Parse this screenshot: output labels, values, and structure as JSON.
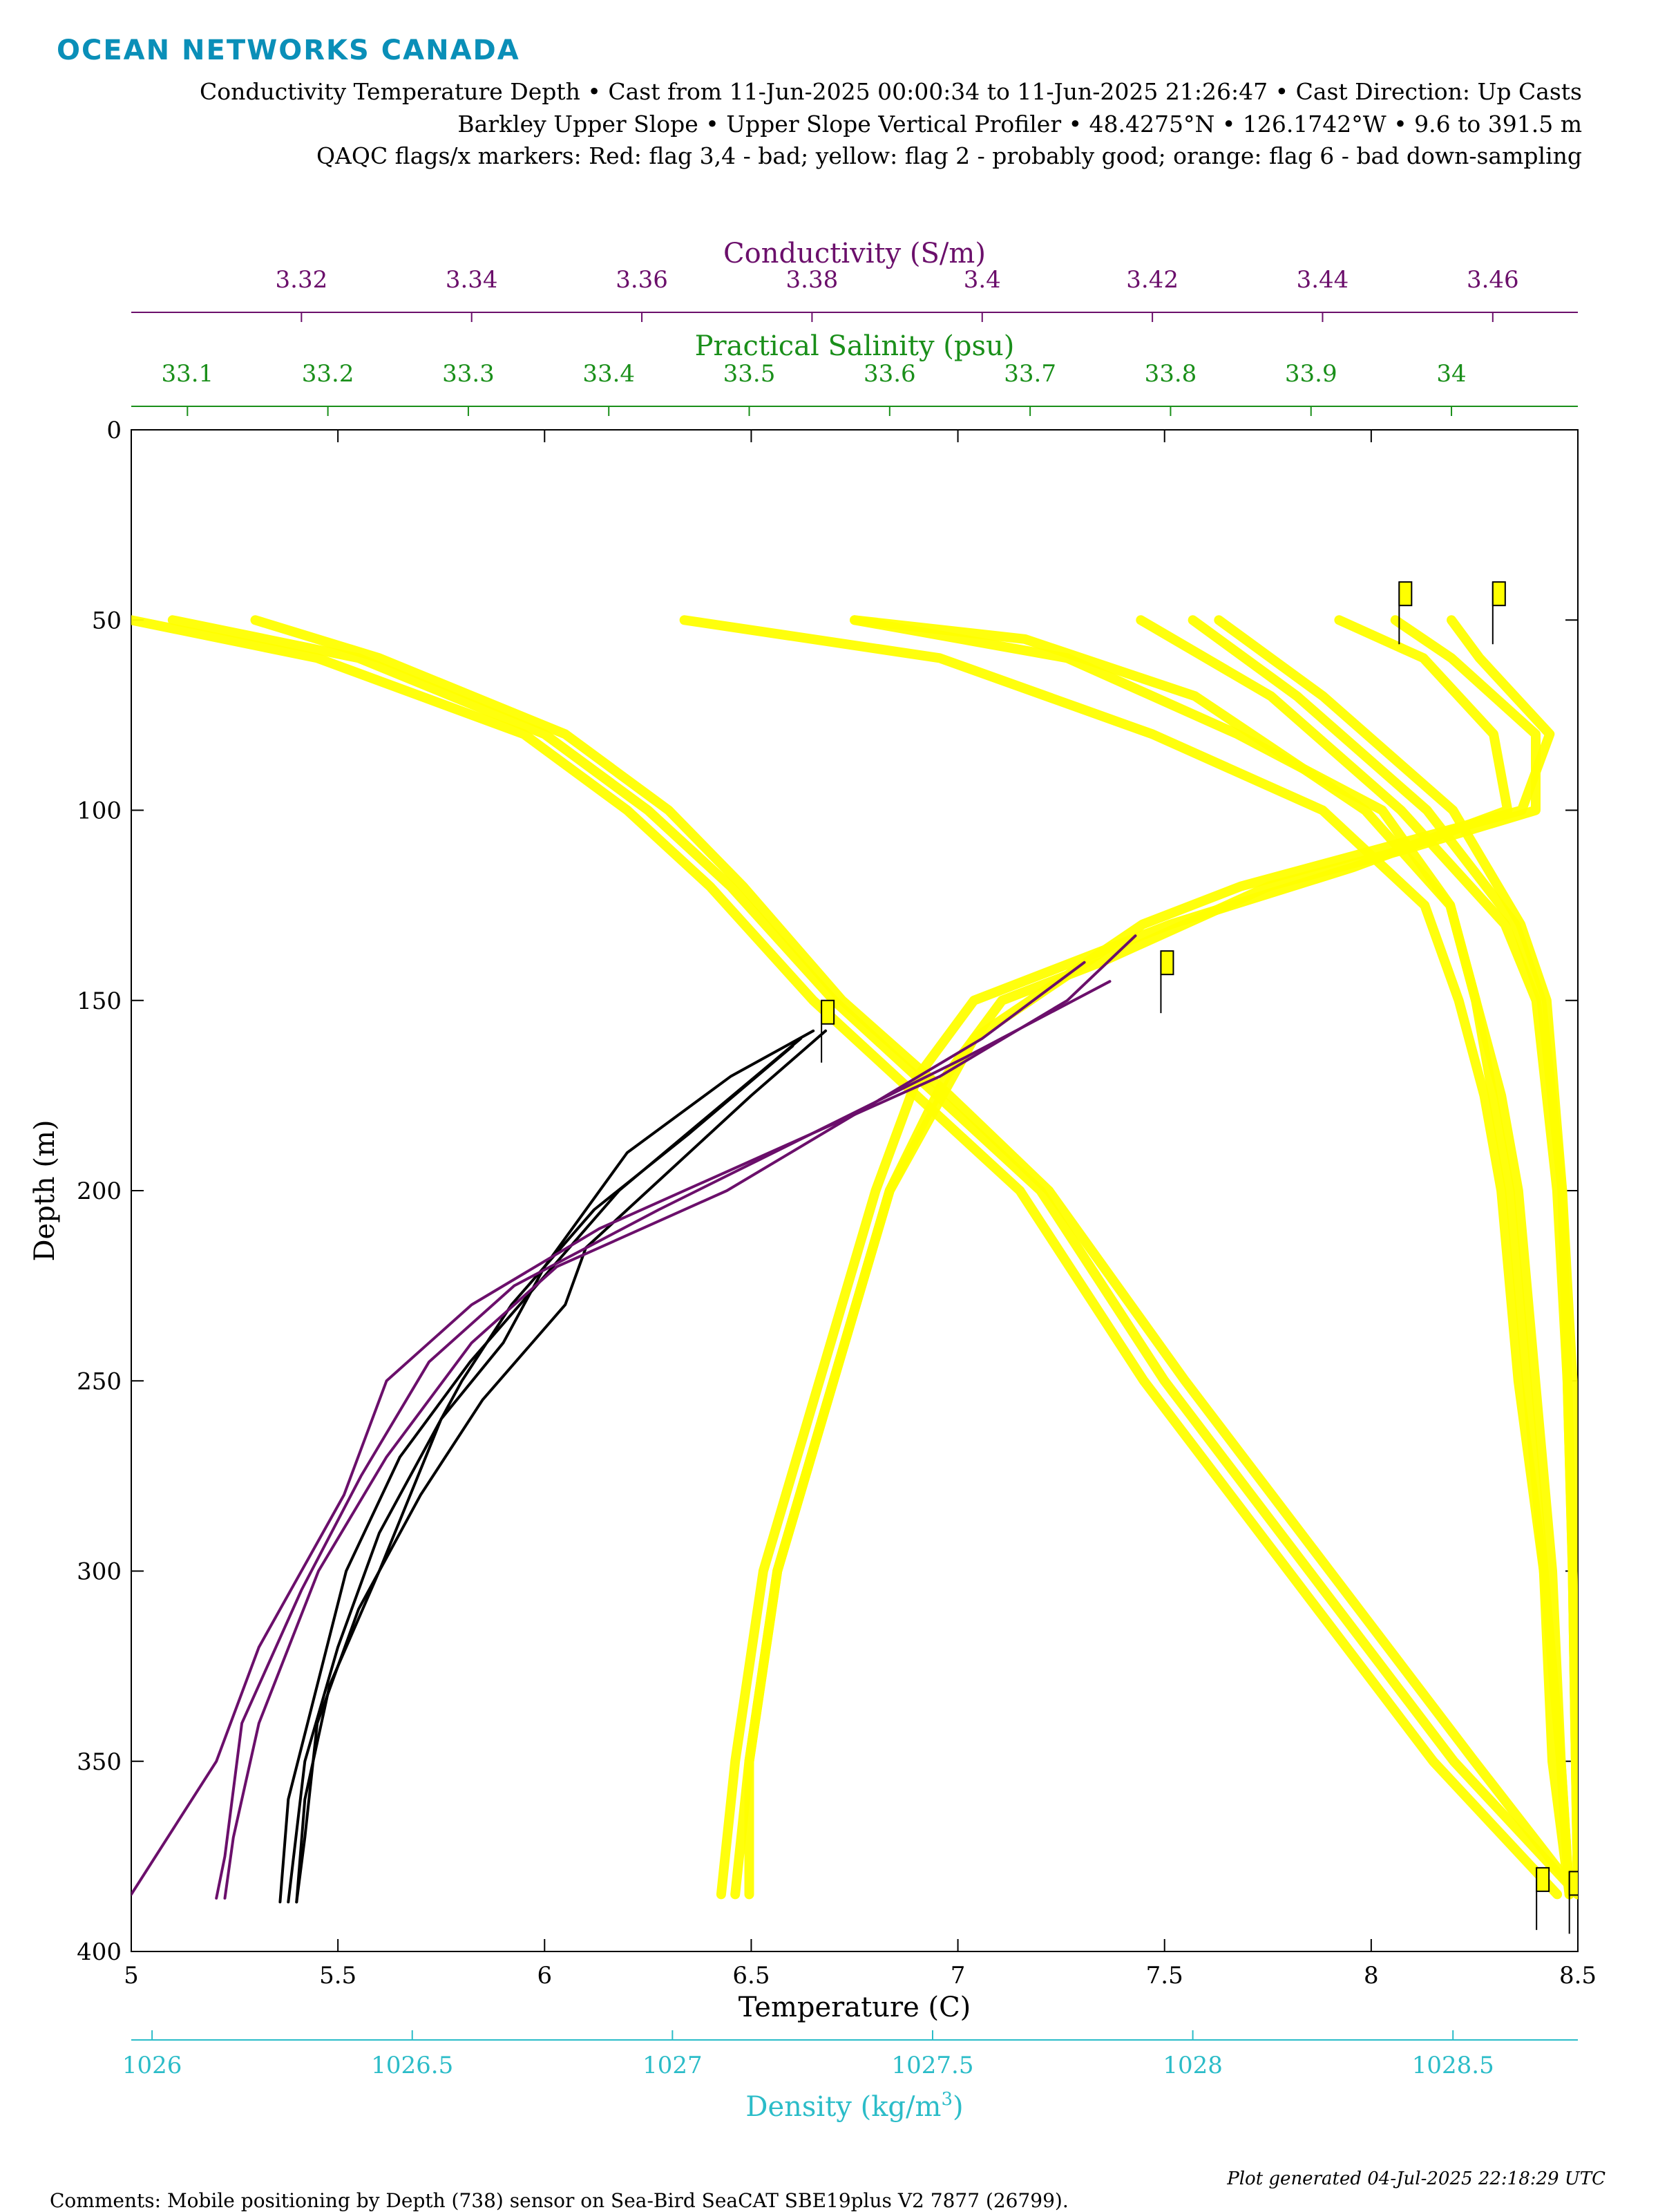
{
  "logo_text": "OCEAN NETWORKS CANADA",
  "header": {
    "line1": "Conductivity Temperature Depth • Cast from 11-Jun-2025 00:00:34 to 11-Jun-2025 21:26:47 • Cast Direction: Up Casts",
    "line2": "Barkley Upper Slope • Upper Slope Vertical Profiler • 48.4275°N • 126.1742°W • 9.6 to 391.5 m",
    "line3": "QAQC flags/x markers: Red: flag 3,4 - bad; yellow: flag 2 - probably good; orange: flag 6 - bad down-sampling"
  },
  "footer": {
    "comments": "Comments: Mobile positioning by Depth (738) sensor on Sea-Bird SeaCAT SBE19plus V2 7877 (26799).",
    "generated": "Plot generated 04-Jul-2025 22:18:29 UTC"
  },
  "colors": {
    "temperature": "#000000",
    "conductivity": "#6b0f6b",
    "salinity": "#1a8f1a",
    "density": "#2bbcc8",
    "flag_probably_good": "#ffff00"
  },
  "chart_data": {
    "type": "line",
    "y_axis": {
      "label": "Depth (m)",
      "range": [
        0,
        400
      ],
      "reversed": true,
      "ticks": [
        0,
        50,
        100,
        150,
        200,
        250,
        300,
        350,
        400
      ]
    },
    "x_axes": {
      "temperature": {
        "label": "Temperature (C)",
        "range": [
          5,
          8.5
        ],
        "ticks": [
          5,
          5.5,
          6,
          6.5,
          7,
          7.5,
          8,
          8.5
        ],
        "tick_labels": [
          "5",
          "5.5",
          "6",
          "6.5",
          "7",
          "7.5",
          "8",
          "8.5"
        ]
      },
      "conductivity": {
        "label": "Conductivity (S/m)",
        "range": [
          3.3,
          3.47
        ],
        "ticks": [
          3.32,
          3.34,
          3.36,
          3.38,
          3.4,
          3.42,
          3.44,
          3.46
        ],
        "tick_labels": [
          "3.32",
          "3.34",
          "3.36",
          "3.38",
          "3.4",
          "3.42",
          "3.44",
          "3.46"
        ]
      },
      "salinity": {
        "label": "Practical Salinity (psu)",
        "range": [
          33.06,
          34.09
        ],
        "ticks": [
          33.1,
          33.2,
          33.3,
          33.4,
          33.5,
          33.6,
          33.7,
          33.8,
          33.9,
          34
        ],
        "tick_labels": [
          "33.1",
          "33.2",
          "33.3",
          "33.4",
          "33.5",
          "33.6",
          "33.7",
          "33.8",
          "33.9",
          "34"
        ]
      },
      "density": {
        "label_main": "Density (kg/m",
        "label_sup": "3",
        "label_end": ")",
        "range": [
          1025.96,
          1028.74
        ],
        "ticks": [
          1026,
          1026.5,
          1027,
          1027.5,
          1028,
          1028.5
        ],
        "tick_labels": [
          "1026",
          "1026.5",
          "1027",
          "1027.5",
          "1028",
          "1028.5"
        ]
      }
    },
    "series": [
      {
        "variable": "temperature",
        "flag": "probably good",
        "profiles": [
          [
            [
              50,
              5.0
            ],
            [
              60,
              5.45
            ],
            [
              80,
              5.95
            ],
            [
              100,
              6.2
            ],
            [
              120,
              6.4
            ],
            [
              150,
              6.65
            ],
            [
              175,
              6.9
            ],
            [
              200,
              7.15
            ],
            [
              250,
              7.45
            ],
            [
              300,
              7.8
            ],
            [
              350,
              8.15
            ],
            [
              385,
              8.45
            ]
          ],
          [
            [
              50,
              5.1
            ],
            [
              60,
              5.55
            ],
            [
              80,
              6.0
            ],
            [
              100,
              6.25
            ],
            [
              120,
              6.45
            ],
            [
              150,
              6.7
            ],
            [
              175,
              6.95
            ],
            [
              200,
              7.2
            ],
            [
              250,
              7.5
            ],
            [
              300,
              7.85
            ],
            [
              350,
              8.2
            ],
            [
              385,
              8.5
            ]
          ],
          [
            [
              50,
              5.3
            ],
            [
              60,
              5.6
            ],
            [
              80,
              6.05
            ],
            [
              100,
              6.3
            ],
            [
              120,
              6.48
            ],
            [
              150,
              6.72
            ],
            [
              175,
              6.98
            ],
            [
              200,
              7.22
            ],
            [
              250,
              7.55
            ],
            [
              300,
              7.9
            ],
            [
              350,
              8.25
            ],
            [
              385,
              8.5
            ]
          ]
        ]
      },
      {
        "variable": "conductivity",
        "flag": "probably good",
        "profiles": [
          [
            [
              50,
              3.385
            ],
            [
              55,
              3.405
            ],
            [
              70,
              3.425
            ],
            [
              100,
              3.445
            ],
            [
              125,
              3.455
            ],
            [
              150,
              3.458
            ],
            [
              175,
              3.46
            ],
            [
              200,
              3.462
            ],
            [
              250,
              3.464
            ],
            [
              300,
              3.466
            ],
            [
              350,
              3.468
            ],
            [
              385,
              3.469
            ]
          ],
          [
            [
              50,
              3.365
            ],
            [
              60,
              3.395
            ],
            [
              80,
              3.42
            ],
            [
              100,
              3.44
            ],
            [
              125,
              3.452
            ],
            [
              150,
              3.456
            ],
            [
              175,
              3.459
            ],
            [
              200,
              3.461
            ],
            [
              250,
              3.463
            ],
            [
              300,
              3.466
            ],
            [
              350,
              3.467
            ],
            [
              385,
              3.469
            ]
          ],
          [
            [
              50,
              3.385
            ],
            [
              60,
              3.41
            ],
            [
              80,
              3.43
            ],
            [
              100,
              3.447
            ],
            [
              125,
              3.455
            ],
            [
              150,
              3.458
            ],
            [
              175,
              3.461
            ],
            [
              200,
              3.463
            ],
            [
              250,
              3.465
            ],
            [
              300,
              3.467
            ],
            [
              350,
              3.468
            ],
            [
              385,
              3.469
            ]
          ]
        ]
      },
      {
        "variable": "salinity",
        "flag": "probably good",
        "profiles": [
          [
            [
              50,
              34.0
            ],
            [
              60,
              34.02
            ],
            [
              80,
              34.07
            ],
            [
              100,
              34.05
            ],
            [
              110,
              33.95
            ],
            [
              120,
              33.85
            ],
            [
              130,
              33.78
            ],
            [
              150,
              33.7
            ],
            [
              160,
              33.66
            ],
            [
              180,
              33.63
            ],
            [
              200,
              33.6
            ],
            [
              250,
              33.56
            ],
            [
              300,
              33.52
            ],
            [
              350,
              33.5
            ],
            [
              385,
              33.5
            ]
          ],
          [
            [
              50,
              33.96
            ],
            [
              60,
              34.0
            ],
            [
              80,
              34.06
            ],
            [
              100,
              34.06
            ],
            [
              110,
              33.97
            ],
            [
              120,
              33.87
            ],
            [
              140,
              33.75
            ],
            [
              150,
              33.68
            ],
            [
              170,
              33.64
            ],
            [
              200,
              33.6
            ],
            [
              250,
              33.56
            ],
            [
              300,
              33.52
            ],
            [
              350,
              33.5
            ],
            [
              385,
              33.49
            ]
          ],
          [
            [
              50,
              33.92
            ],
            [
              60,
              33.98
            ],
            [
              80,
              34.03
            ],
            [
              100,
              34.04
            ],
            [
              115,
              33.93
            ],
            [
              130,
              33.8
            ],
            [
              150,
              33.66
            ],
            [
              170,
              33.62
            ],
            [
              200,
              33.59
            ],
            [
              250,
              33.55
            ],
            [
              300,
              33.51
            ],
            [
              350,
              33.49
            ],
            [
              385,
              33.48
            ]
          ]
        ]
      },
      {
        "variable": "density",
        "flag": "probably good",
        "profiles": [
          [
            [
              50,
              1028.0
            ],
            [
              70,
              1028.2
            ],
            [
              100,
              1028.45
            ],
            [
              130,
              1028.62
            ],
            [
              150,
              1028.67
            ],
            [
              200,
              1028.71
            ],
            [
              250,
              1028.72
            ],
            [
              300,
              1028.73
            ],
            [
              385,
              1028.74
            ]
          ],
          [
            [
              50,
              1027.9
            ],
            [
              70,
              1028.15
            ],
            [
              100,
              1028.4
            ],
            [
              130,
              1028.6
            ],
            [
              150,
              1028.66
            ],
            [
              200,
              1028.7
            ],
            [
              250,
              1028.72
            ],
            [
              300,
              1028.73
            ],
            [
              385,
              1028.74
            ]
          ],
          [
            [
              50,
              1028.05
            ],
            [
              70,
              1028.25
            ],
            [
              100,
              1028.5
            ],
            [
              130,
              1028.63
            ],
            [
              150,
              1028.68
            ],
            [
              200,
              1028.71
            ],
            [
              250,
              1028.73
            ],
            [
              300,
              1028.73
            ],
            [
              385,
              1028.74
            ]
          ]
        ]
      },
      {
        "variable": "temperature",
        "flag": "good",
        "profiles": [
          [
            [
              158,
              6.65
            ],
            [
              170,
              6.45
            ],
            [
              190,
              6.2
            ],
            [
              220,
              6.0
            ],
            [
              240,
              5.9
            ],
            [
              260,
              5.75
            ],
            [
              300,
              5.6
            ],
            [
              330,
              5.48
            ],
            [
              360,
              5.42
            ],
            [
              387,
              5.4
            ]
          ],
          [
            [
              158,
              6.68
            ],
            [
              175,
              6.5
            ],
            [
              195,
              6.3
            ],
            [
              215,
              6.1
            ],
            [
              230,
              6.05
            ],
            [
              255,
              5.85
            ],
            [
              280,
              5.7
            ],
            [
              310,
              5.55
            ],
            [
              340,
              5.45
            ],
            [
              370,
              5.42
            ],
            [
              387,
              5.4
            ]
          ],
          [
            [
              160,
              6.62
            ],
            [
              180,
              6.4
            ],
            [
              200,
              6.18
            ],
            [
              225,
              5.98
            ],
            [
              245,
              5.82
            ],
            [
              270,
              5.65
            ],
            [
              300,
              5.52
            ],
            [
              330,
              5.45
            ],
            [
              360,
              5.38
            ],
            [
              387,
              5.36
            ]
          ],
          [
            [
              162,
              6.6
            ],
            [
              185,
              6.35
            ],
            [
              205,
              6.12
            ],
            [
              230,
              5.92
            ],
            [
              250,
              5.8
            ],
            [
              290,
              5.6
            ],
            [
              320,
              5.5
            ],
            [
              350,
              5.42
            ],
            [
              387,
              5.38
            ]
          ]
        ]
      },
      {
        "variable": "conductivity",
        "flag": "good",
        "profiles": [
          [
            [
              133,
              3.418
            ],
            [
              150,
              3.41
            ],
            [
              170,
              3.395
            ],
            [
              190,
              3.375
            ],
            [
              210,
              3.355
            ],
            [
              230,
              3.34
            ],
            [
              250,
              3.33
            ],
            [
              280,
              3.325
            ],
            [
              320,
              3.315
            ],
            [
              350,
              3.31
            ],
            [
              385,
              3.3
            ]
          ],
          [
            [
              140,
              3.412
            ],
            [
              160,
              3.4
            ],
            [
              180,
              3.385
            ],
            [
              200,
              3.37
            ],
            [
              220,
              3.35
            ],
            [
              240,
              3.34
            ],
            [
              270,
              3.33
            ],
            [
              300,
              3.322
            ],
            [
              340,
              3.315
            ],
            [
              370,
              3.312
            ],
            [
              386,
              3.311
            ]
          ],
          [
            [
              145,
              3.415
            ],
            [
              165,
              3.398
            ],
            [
              185,
              3.38
            ],
            [
              205,
              3.362
            ],
            [
              225,
              3.345
            ],
            [
              245,
              3.335
            ],
            [
              275,
              3.327
            ],
            [
              305,
              3.32
            ],
            [
              340,
              3.313
            ],
            [
              375,
              3.311
            ],
            [
              386,
              3.31
            ]
          ]
        ]
      }
    ],
    "flag_markers": [
      {
        "variable": "temperature",
        "depth": 150,
        "value": 6.67
      },
      {
        "variable": "temperature",
        "depth": 378,
        "value": 8.4
      },
      {
        "variable": "conductivity",
        "depth": 137,
        "value": 3.421
      },
      {
        "variable": "conductivity",
        "depth": 40,
        "value": 3.449
      },
      {
        "variable": "conductivity",
        "depth": 40,
        "value": 3.46
      },
      {
        "variable": "conductivity",
        "depth": 379,
        "value": 3.469
      }
    ]
  }
}
